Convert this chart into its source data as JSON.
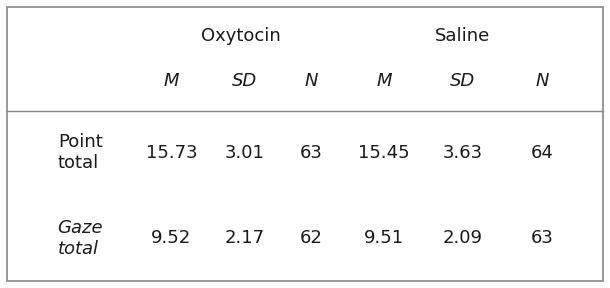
{
  "group_headers": [
    "Oxytocin",
    "Saline"
  ],
  "col_headers": [
    "M",
    "SD",
    "N"
  ],
  "row_labels": [
    "Point\ntotal",
    "Gaze\ntotal"
  ],
  "row_labels_italic": [
    false,
    true
  ],
  "data": [
    [
      "15.73",
      "3.01",
      "63",
      "15.45",
      "3.63",
      "64"
    ],
    [
      "9.52",
      "2.17",
      "62",
      "9.51",
      "2.09",
      "63"
    ]
  ],
  "background_color": "#ffffff",
  "border_color": "#888888",
  "text_color": "#1a1a1a",
  "header_fontsize": 13,
  "subheader_fontsize": 13,
  "data_fontsize": 13,
  "row_label_fontsize": 13
}
